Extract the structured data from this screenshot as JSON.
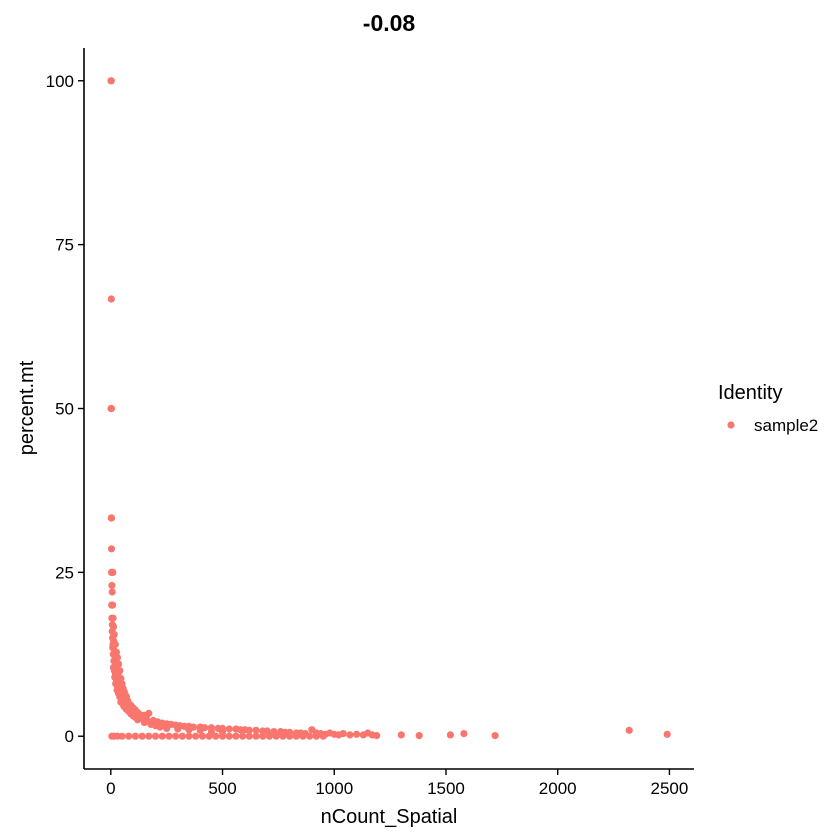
{
  "chart_data": {
    "type": "scatter",
    "title": "-0.08",
    "xlabel": "nCount_Spatial",
    "ylabel": "percent.mt",
    "xlim": [
      -120,
      2610
    ],
    "ylim": [
      -5,
      105
    ],
    "x_ticks": [
      0,
      500,
      1000,
      1500,
      2000,
      2500
    ],
    "x_tick_labels": [
      "0",
      "500",
      "1000",
      "1500",
      "2000",
      "2500"
    ],
    "y_ticks": [
      0,
      25,
      50,
      75,
      100
    ],
    "y_tick_labels": [
      "0",
      "25",
      "50",
      "75",
      "100"
    ],
    "grid": false,
    "legend": {
      "title": "Identity",
      "placement": "right",
      "entries": [
        {
          "name": "sample2",
          "color": "#F8766D"
        }
      ]
    },
    "series": [
      {
        "name": "sample2",
        "color": "#F8766D",
        "points": [
          [
            1,
            100
          ],
          [
            2,
            100
          ],
          [
            2,
            66.7
          ],
          [
            1,
            50
          ],
          [
            3,
            50
          ],
          [
            2,
            33.3
          ],
          [
            3,
            33.3
          ],
          [
            3,
            28.6
          ],
          [
            3,
            25
          ],
          [
            9,
            25
          ],
          [
            5,
            23
          ],
          [
            6,
            22
          ],
          [
            4,
            20
          ],
          [
            8,
            20
          ],
          [
            5,
            18
          ],
          [
            10,
            18
          ],
          [
            7,
            17
          ],
          [
            12,
            16.7
          ],
          [
            6,
            16
          ],
          [
            15,
            15.5
          ],
          [
            8,
            15
          ],
          [
            13,
            14.5
          ],
          [
            10,
            14
          ],
          [
            20,
            14
          ],
          [
            9,
            13.5
          ],
          [
            17,
            13
          ],
          [
            25,
            12.8
          ],
          [
            11,
            12.5
          ],
          [
            19,
            12
          ],
          [
            30,
            12
          ],
          [
            14,
            11.5
          ],
          [
            23,
            11
          ],
          [
            35,
            11
          ],
          [
            12,
            10.5
          ],
          [
            27,
            10.2
          ],
          [
            16,
            10
          ],
          [
            40,
            10
          ],
          [
            21,
            9.5
          ],
          [
            33,
            9.2
          ],
          [
            18,
            9
          ],
          [
            45,
            8.8
          ],
          [
            26,
            8.5
          ],
          [
            38,
            8.2
          ],
          [
            22,
            8
          ],
          [
            50,
            8
          ],
          [
            30,
            7.6
          ],
          [
            55,
            7.3
          ],
          [
            28,
            7
          ],
          [
            43,
            7
          ],
          [
            60,
            6.8
          ],
          [
            35,
            6.5
          ],
          [
            65,
            6.3
          ],
          [
            40,
            6
          ],
          [
            70,
            6
          ],
          [
            48,
            5.6
          ],
          [
            75,
            5.4
          ],
          [
            45,
            5.2
          ],
          [
            80,
            5
          ],
          [
            55,
            4.8
          ],
          [
            90,
            4.7
          ],
          [
            60,
            4.5
          ],
          [
            100,
            4.3
          ],
          [
            70,
            4.1
          ],
          [
            110,
            4
          ],
          [
            80,
            3.8
          ],
          [
            120,
            3.6
          ],
          [
            90,
            3.4
          ],
          [
            130,
            3.3
          ],
          [
            100,
            3.1
          ],
          [
            150,
            3.2
          ],
          [
            170,
            3.5
          ],
          [
            110,
            2.9
          ],
          [
            140,
            2.8
          ],
          [
            160,
            2.6
          ],
          [
            120,
            2.5
          ],
          [
            190,
            2.4
          ],
          [
            210,
            2.2
          ],
          [
            150,
            2.1
          ],
          [
            230,
            2
          ],
          [
            250,
            1.9
          ],
          [
            180,
            1.8
          ],
          [
            270,
            1.8
          ],
          [
            290,
            1.7
          ],
          [
            200,
            1.6
          ],
          [
            310,
            1.6
          ],
          [
            330,
            1.5
          ],
          [
            350,
            1.5
          ],
          [
            220,
            1.4
          ],
          [
            370,
            1.4
          ],
          [
            400,
            1.4
          ],
          [
            420,
            1.3
          ],
          [
            250,
            1.2
          ],
          [
            450,
            1.3
          ],
          [
            480,
            1.2
          ],
          [
            500,
            1.2
          ],
          [
            300,
            1.1
          ],
          [
            530,
            1.1
          ],
          [
            560,
            1.1
          ],
          [
            350,
            1
          ],
          [
            580,
            1
          ],
          [
            600,
            1
          ],
          [
            620,
            0.9
          ],
          [
            400,
            0.9
          ],
          [
            650,
            0.9
          ],
          [
            680,
            0.8
          ],
          [
            700,
            0.8
          ],
          [
            450,
            0.7
          ],
          [
            730,
            0.7
          ],
          [
            760,
            0.7
          ],
          [
            780,
            0.6
          ],
          [
            500,
            0.6
          ],
          [
            800,
            0.6
          ],
          [
            830,
            0.5
          ],
          [
            850,
            0.5
          ],
          [
            870,
            0.4
          ],
          [
            900,
            1
          ],
          [
            920,
            0.5
          ],
          [
            940,
            0.4
          ],
          [
            960,
            0.3
          ],
          [
            980,
            0.5
          ],
          [
            1000,
            0.3
          ],
          [
            1020,
            0.2
          ],
          [
            1040,
            0.4
          ],
          [
            1070,
            0.2
          ],
          [
            1100,
            0.3
          ],
          [
            1130,
            0.2
          ],
          [
            1150,
            0.5
          ],
          [
            1170,
            0.2
          ],
          [
            1190,
            0.1
          ],
          [
            1300,
            0.2
          ],
          [
            1380,
            0.1
          ],
          [
            1520,
            0.2
          ],
          [
            1580,
            0.4
          ],
          [
            1720,
            0.1
          ],
          [
            2320,
            0.9
          ],
          [
            2490,
            0.3
          ],
          [
            5,
            0
          ],
          [
            15,
            0
          ],
          [
            30,
            0
          ],
          [
            50,
            0
          ],
          [
            80,
            0
          ],
          [
            110,
            0
          ],
          [
            140,
            0
          ],
          [
            170,
            0
          ],
          [
            200,
            0
          ],
          [
            230,
            0
          ],
          [
            260,
            0
          ],
          [
            290,
            0
          ],
          [
            320,
            0
          ],
          [
            350,
            0
          ],
          [
            380,
            0
          ],
          [
            410,
            0
          ],
          [
            440,
            0
          ],
          [
            470,
            0
          ],
          [
            500,
            0
          ],
          [
            530,
            0
          ],
          [
            560,
            0
          ],
          [
            590,
            0
          ],
          [
            620,
            0
          ],
          [
            650,
            0
          ],
          [
            680,
            0
          ],
          [
            710,
            0
          ],
          [
            740,
            0
          ],
          [
            770,
            0
          ],
          [
            800,
            0
          ],
          [
            830,
            0
          ],
          [
            860,
            0
          ],
          [
            890,
            0
          ],
          [
            920,
            0
          ],
          [
            950,
            0
          ]
        ]
      }
    ]
  }
}
